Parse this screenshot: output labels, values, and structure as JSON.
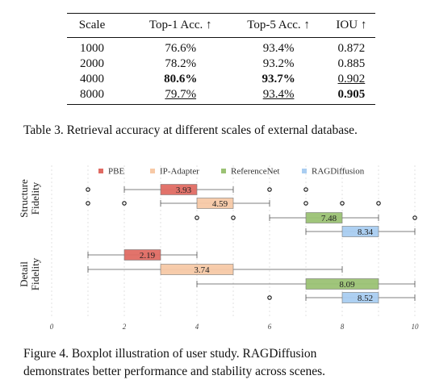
{
  "table": {
    "headers": [
      "Scale",
      "Top-1 Acc. ↑",
      "Top-5 Acc. ↑",
      "IOU ↑"
    ],
    "rows": [
      [
        "1000",
        "76.6%",
        "93.4%",
        "0.872"
      ],
      [
        "2000",
        "78.2%",
        "93.2%",
        "0.885"
      ],
      [
        "4000",
        "80.6%",
        "93.7%",
        "0.902"
      ],
      [
        "8000",
        "79.7%",
        "93.4%",
        "0.905"
      ]
    ],
    "caption": "Table 3. Retrieval accuracy at different scales of external database."
  },
  "figure": {
    "caption_line1": "Figure 4.   Boxplot illustration of user study.   RAGDiffusion",
    "caption_line2": "demonstrates better performance and stability across scenes."
  },
  "chart_data": {
    "type": "boxplot",
    "orientation": "horizontal",
    "groups": [
      "Structure Fidelity",
      "Detail Fidelity"
    ],
    "xlim": [
      0,
      10
    ],
    "xticks": [
      "0",
      "2",
      "4",
      "6",
      "8",
      "10"
    ],
    "legend": [
      "PBE",
      "IP-Adapter",
      "ReferenceNet",
      "RAGDiffusion"
    ],
    "colors": [
      "#e06b63",
      "#f7c9a6",
      "#9bc274",
      "#a9cdf1"
    ],
    "legend_position": "top",
    "grid": "vertical dashed",
    "boxes": [
      {
        "group": "Structure Fidelity",
        "series": "PBE",
        "label": "3.93",
        "whisker_min": 2,
        "q1": 3,
        "q3": 4,
        "whisker_max": 5,
        "outliers": [
          1,
          6,
          7
        ]
      },
      {
        "group": "Structure Fidelity",
        "series": "IP-Adapter",
        "label": "4.59",
        "whisker_min": 3,
        "q1": 4,
        "q3": 5,
        "whisker_max": 6,
        "outliers": [
          1,
          2,
          7,
          8,
          9
        ]
      },
      {
        "group": "Structure Fidelity",
        "series": "ReferenceNet",
        "label": "7.48",
        "whisker_min": 6,
        "q1": 7,
        "q3": 8,
        "whisker_max": 9,
        "outliers": [
          4,
          5,
          10
        ]
      },
      {
        "group": "Structure Fidelity",
        "series": "RAGDiffusion",
        "label": "8.34",
        "whisker_min": 7,
        "q1": 8,
        "q3": 9,
        "whisker_max": 10,
        "outliers": []
      },
      {
        "group": "Detail Fidelity",
        "series": "PBE",
        "label": "2.19",
        "whisker_min": 1,
        "q1": 2,
        "q3": 3,
        "whisker_max": 4,
        "outliers": []
      },
      {
        "group": "Detail Fidelity",
        "series": "IP-Adapter",
        "label": "3.74",
        "whisker_min": 1,
        "q1": 3,
        "q3": 5,
        "whisker_max": 8,
        "outliers": []
      },
      {
        "group": "Detail Fidelity",
        "series": "ReferenceNet",
        "label": "8.09",
        "whisker_min": 4,
        "q1": 7,
        "q3": 9,
        "whisker_max": 10,
        "outliers": []
      },
      {
        "group": "Detail Fidelity",
        "series": "RAGDiffusion",
        "label": "8.52",
        "whisker_min": 7,
        "q1": 8,
        "q3": 9,
        "whisker_max": 10,
        "outliers": [
          6
        ]
      }
    ]
  }
}
